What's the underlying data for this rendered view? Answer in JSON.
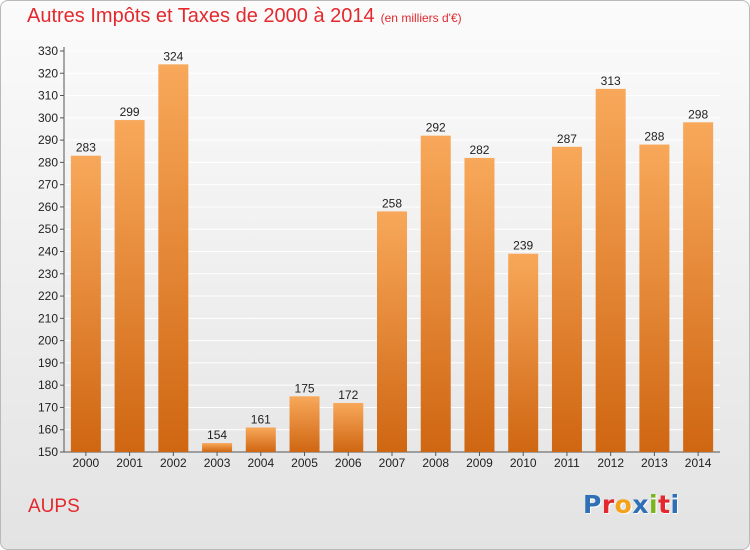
{
  "header": {
    "title": "Autres Impôts et Taxes de 2000 à 2014",
    "unit": "(en milliers d'€)"
  },
  "commune": "AUPS",
  "logo": {
    "text": "Proxiti",
    "letters": [
      "P",
      "r",
      "o",
      "x",
      "i",
      "t",
      "i"
    ],
    "letter_colors": [
      "#2f6fb5",
      "#e3292e",
      "#f3a21a",
      "#2f6fb5",
      "#7ab51d",
      "#e3292e",
      "#2f6fb5"
    ]
  },
  "colors": {
    "bar_top": "#f8a85a",
    "bar_bottom": "#cf6612",
    "grid": "#ffffff",
    "title": "#e3292e"
  },
  "chart_data": {
    "type": "bar",
    "title": "Autres Impôts et Taxes de 2000 à 2014",
    "subtitle": "(en milliers d'€)",
    "xlabel": "",
    "ylabel": "",
    "categories": [
      "2000",
      "2001",
      "2002",
      "2003",
      "2004",
      "2005",
      "2006",
      "2007",
      "2008",
      "2009",
      "2010",
      "2011",
      "2012",
      "2013",
      "2014"
    ],
    "values": [
      283,
      299,
      324,
      154,
      161,
      175,
      172,
      258,
      292,
      282,
      239,
      287,
      313,
      288,
      298
    ],
    "ylim": [
      150,
      330
    ],
    "yticks": [
      150,
      160,
      170,
      180,
      190,
      200,
      210,
      220,
      230,
      240,
      250,
      260,
      270,
      280,
      290,
      300,
      310,
      320,
      330
    ],
    "grid": true,
    "legend": "none"
  }
}
